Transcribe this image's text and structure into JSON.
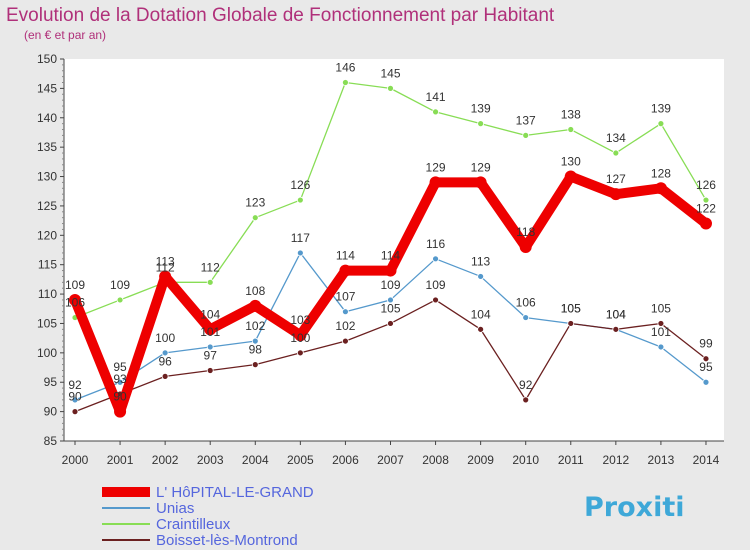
{
  "chart_data": {
    "type": "line",
    "title": "Evolution de la Dotation Globale de Fonctionnement par Habitant",
    "subtitle": "(en € et par an)",
    "x": [
      "2000",
      "2001",
      "2002",
      "2003",
      "2004",
      "2005",
      "2006",
      "2007",
      "2008",
      "2009",
      "2010",
      "2011",
      "2012",
      "2013",
      "2014"
    ],
    "ylim": [
      85,
      150
    ],
    "yticks": [
      85,
      90,
      95,
      100,
      105,
      110,
      115,
      120,
      125,
      130,
      135,
      140,
      145,
      150
    ],
    "grid": false,
    "legend_position": "bottom-left",
    "series": [
      {
        "name": "L' HôPITAL-LE-GRAND",
        "color": "#ee0000",
        "values": [
          109,
          90,
          113,
          104,
          108,
          103,
          114,
          114,
          129,
          129,
          118,
          130,
          127,
          128,
          122
        ]
      },
      {
        "name": "Unias",
        "color": "#5599cc",
        "values": [
          92,
          95,
          100,
          101,
          102,
          117,
          107,
          109,
          116,
          113,
          106,
          105,
          104,
          101,
          95
        ]
      },
      {
        "name": "Craintilleux",
        "color": "#88dd55",
        "values": [
          106,
          109,
          112,
          112,
          123,
          126,
          146,
          145,
          141,
          139,
          137,
          138,
          134,
          139,
          126
        ]
      },
      {
        "name": "Boisset-lès-Montrond",
        "color": "#6b2020",
        "values": [
          90,
          93,
          96,
          97,
          98,
          100,
          102,
          105,
          109,
          104,
          92,
          105,
          104,
          105,
          99
        ]
      }
    ]
  },
  "brand": {
    "text": "Proxiti"
  }
}
